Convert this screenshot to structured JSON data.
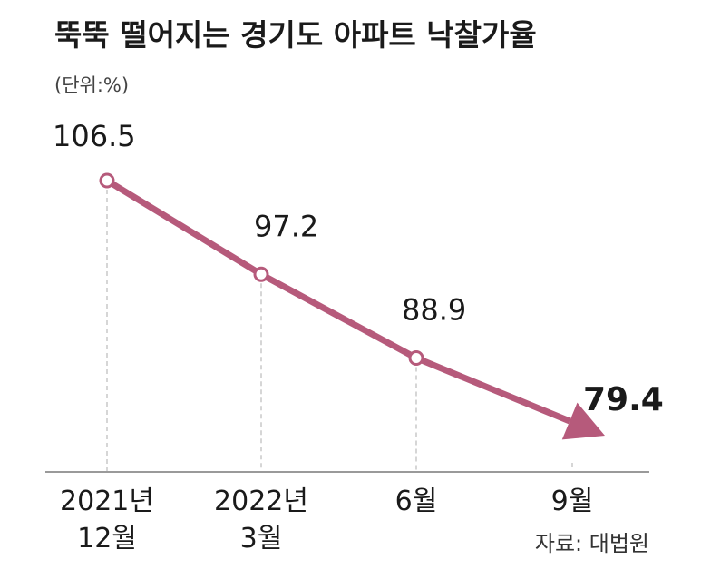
{
  "chart_data": {
    "type": "line",
    "title": "뚝뚝 떨어지는 경기도 아파트 낙찰가율",
    "unit_label": "(단위:%)",
    "categories": [
      [
        "2021년",
        "12월"
      ],
      [
        "2022년",
        "3월"
      ],
      [
        "6월"
      ],
      [
        "9월"
      ]
    ],
    "values": [
      106.5,
      97.2,
      88.9,
      79.4
    ],
    "value_labels": [
      "106.5",
      "97.2",
      "88.9",
      "79.4"
    ],
    "source": "자료: 대법원",
    "series_color": "#b65a7b",
    "gridlines": "vertical-dashed",
    "grid_color": "#c8c8c8",
    "axis_color": "#9a9a9a",
    "ylim": [
      70,
      110
    ]
  }
}
